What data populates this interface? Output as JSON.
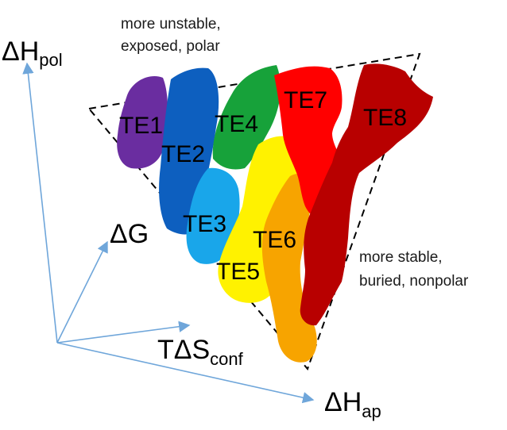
{
  "annotations": {
    "top": {
      "line1": "more unstable,",
      "line2": "exposed, polar"
    },
    "bottom": {
      "line1": "more stable,",
      "line2": "buried, nonpolar"
    }
  },
  "axes": {
    "dh_pol": {
      "symbol": "ΔH",
      "sub": "pol"
    },
    "dg": {
      "symbol": "ΔG"
    },
    "tds": {
      "symbol": "TΔS",
      "sub": "conf"
    },
    "dh_ap": {
      "symbol": "ΔH",
      "sub": "ap"
    }
  },
  "regions": [
    {
      "label": "TE1",
      "color": "#6a2da0"
    },
    {
      "label": "TE2",
      "color": "#0d5fbf"
    },
    {
      "label": "TE3",
      "color": "#19a6ea"
    },
    {
      "label": "TE4",
      "color": "#17a23a"
    },
    {
      "label": "TE5",
      "color": "#fff200"
    },
    {
      "label": "TE6",
      "color": "#f7a400"
    },
    {
      "label": "TE7",
      "color": "#ff0000"
    },
    {
      "label": "TE8",
      "color": "#b80000"
    }
  ],
  "colors": {
    "axis": "#6fa6da",
    "triangle": "#000000"
  }
}
